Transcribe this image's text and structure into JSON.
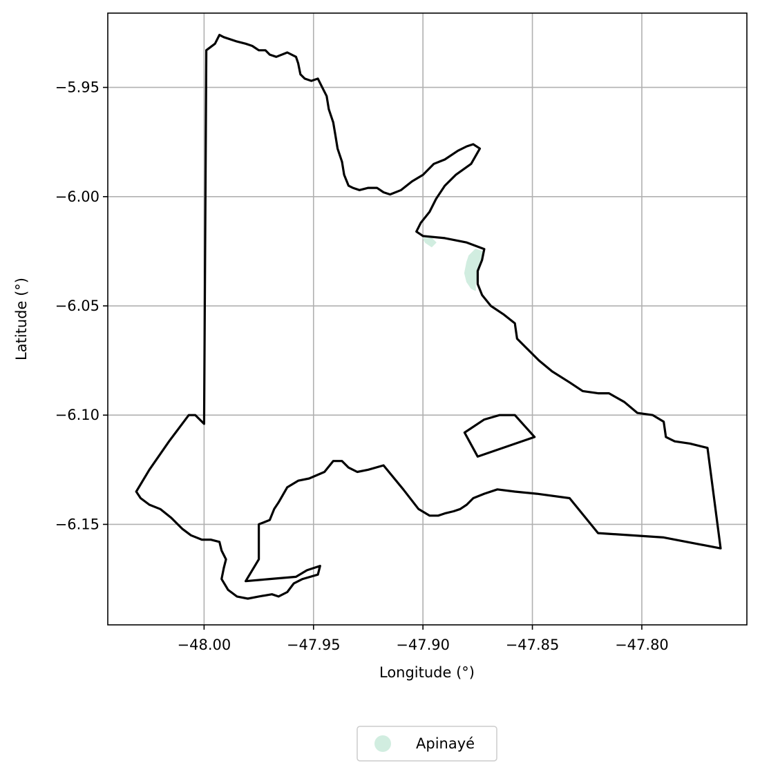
{
  "chart_data": {
    "type": "map",
    "xlabel": "Longitude (°)",
    "ylabel": "Latitude (°)",
    "xlim": [
      -48.044,
      -47.752
    ],
    "ylim": [
      -6.196,
      -5.916
    ],
    "grid": true,
    "legend_placement": "bottom-center",
    "x_ticks": [
      {
        "value": -48.0,
        "label": "−48.00"
      },
      {
        "value": -47.95,
        "label": "−47.95"
      },
      {
        "value": -47.9,
        "label": "−47.90"
      },
      {
        "value": -47.85,
        "label": "−47.85"
      },
      {
        "value": -47.8,
        "label": "−47.80"
      }
    ],
    "y_ticks": [
      {
        "value": -5.95,
        "label": "−5.95"
      },
      {
        "value": -6.0,
        "label": "−6.00"
      },
      {
        "value": -6.05,
        "label": "−6.05"
      },
      {
        "value": -6.1,
        "label": "−6.10"
      },
      {
        "value": -6.15,
        "label": "−6.15"
      }
    ],
    "boundary_color": "#000000",
    "boundary_rings": [
      [
        [
          -47.999,
          -5.933
        ],
        [
          -47.995,
          -5.93
        ],
        [
          -47.993,
          -5.926
        ],
        [
          -47.991,
          -5.927
        ],
        [
          -47.985,
          -5.929
        ],
        [
          -47.981,
          -5.93
        ],
        [
          -47.978,
          -5.931
        ],
        [
          -47.975,
          -5.933
        ],
        [
          -47.972,
          -5.933
        ],
        [
          -47.97,
          -5.935
        ],
        [
          -47.967,
          -5.936
        ],
        [
          -47.962,
          -5.934
        ],
        [
          -47.958,
          -5.936
        ],
        [
          -47.957,
          -5.939
        ],
        [
          -47.956,
          -5.944
        ],
        [
          -47.954,
          -5.946
        ],
        [
          -47.951,
          -5.947
        ],
        [
          -47.948,
          -5.946
        ],
        [
          -47.946,
          -5.95
        ],
        [
          -47.944,
          -5.954
        ],
        [
          -47.943,
          -5.96
        ],
        [
          -47.941,
          -5.966
        ],
        [
          -47.94,
          -5.972
        ],
        [
          -47.939,
          -5.978
        ],
        [
          -47.937,
          -5.984
        ],
        [
          -47.936,
          -5.99
        ],
        [
          -47.934,
          -5.995
        ],
        [
          -47.932,
          -5.996
        ],
        [
          -47.929,
          -5.997
        ],
        [
          -47.925,
          -5.996
        ],
        [
          -47.921,
          -5.996
        ],
        [
          -47.918,
          -5.998
        ],
        [
          -47.915,
          -5.999
        ],
        [
          -47.91,
          -5.997
        ],
        [
          -47.905,
          -5.993
        ],
        [
          -47.9,
          -5.99
        ],
        [
          -47.895,
          -5.985
        ],
        [
          -47.89,
          -5.983
        ],
        [
          -47.884,
          -5.979
        ],
        [
          -47.88,
          -5.977
        ],
        [
          -47.877,
          -5.976
        ],
        [
          -47.874,
          -5.978
        ],
        [
          -47.878,
          -5.985
        ],
        [
          -47.885,
          -5.99
        ],
        [
          -47.89,
          -5.995
        ],
        [
          -47.894,
          -6.001
        ],
        [
          -47.897,
          -6.007
        ],
        [
          -47.901,
          -6.012
        ],
        [
          -47.903,
          -6.016
        ],
        [
          -47.9,
          -6.018
        ],
        [
          -47.89,
          -6.019
        ],
        [
          -47.88,
          -6.021
        ],
        [
          -47.872,
          -6.024
        ],
        [
          -47.873,
          -6.029
        ],
        [
          -47.875,
          -6.034
        ],
        [
          -47.875,
          -6.04
        ],
        [
          -47.873,
          -6.045
        ],
        [
          -47.869,
          -6.05
        ],
        [
          -47.863,
          -6.054
        ],
        [
          -47.858,
          -6.058
        ],
        [
          -47.857,
          -6.065
        ],
        [
          -47.852,
          -6.07
        ],
        [
          -47.847,
          -6.075
        ],
        [
          -47.841,
          -6.08
        ],
        [
          -47.833,
          -6.085
        ],
        [
          -47.827,
          -6.089
        ],
        [
          -47.82,
          -6.09
        ],
        [
          -47.815,
          -6.09
        ],
        [
          -47.808,
          -6.094
        ],
        [
          -47.802,
          -6.099
        ],
        [
          -47.795,
          -6.1
        ],
        [
          -47.79,
          -6.103
        ],
        [
          -47.789,
          -6.11
        ],
        [
          -47.785,
          -6.112
        ],
        [
          -47.778,
          -6.113
        ],
        [
          -47.77,
          -6.115
        ],
        [
          -47.764,
          -6.161
        ],
        [
          -47.79,
          -6.156
        ],
        [
          -47.82,
          -6.154
        ],
        [
          -47.833,
          -6.138
        ],
        [
          -47.848,
          -6.136
        ],
        [
          -47.858,
          -6.135
        ],
        [
          -47.866,
          -6.134
        ],
        [
          -47.872,
          -6.136
        ],
        [
          -47.877,
          -6.138
        ],
        [
          -47.88,
          -6.141
        ],
        [
          -47.883,
          -6.143
        ],
        [
          -47.886,
          -6.144
        ],
        [
          -47.89,
          -6.145
        ],
        [
          -47.893,
          -6.146
        ],
        [
          -47.897,
          -6.146
        ],
        [
          -47.902,
          -6.143
        ],
        [
          -47.909,
          -6.134
        ],
        [
          -47.918,
          -6.123
        ],
        [
          -47.925,
          -6.125
        ],
        [
          -47.93,
          -6.126
        ],
        [
          -47.934,
          -6.124
        ],
        [
          -47.937,
          -6.121
        ],
        [
          -47.941,
          -6.121
        ],
        [
          -47.945,
          -6.126
        ],
        [
          -47.952,
          -6.129
        ],
        [
          -47.957,
          -6.13
        ],
        [
          -47.962,
          -6.133
        ],
        [
          -47.966,
          -6.14
        ],
        [
          -47.968,
          -6.143
        ],
        [
          -47.97,
          -6.148
        ],
        [
          -47.975,
          -6.15
        ],
        [
          -47.975,
          -6.166
        ],
        [
          -47.981,
          -6.176
        ],
        [
          -47.97,
          -6.175
        ],
        [
          -47.958,
          -6.174
        ],
        [
          -47.953,
          -6.171
        ],
        [
          -47.947,
          -6.169
        ],
        [
          -47.948,
          -6.173
        ],
        [
          -47.955,
          -6.175
        ],
        [
          -47.959,
          -6.177
        ],
        [
          -47.962,
          -6.181
        ],
        [
          -47.966,
          -6.183
        ],
        [
          -47.969,
          -6.182
        ],
        [
          -47.975,
          -6.183
        ],
        [
          -47.98,
          -6.184
        ],
        [
          -47.985,
          -6.183
        ],
        [
          -47.989,
          -6.18
        ],
        [
          -47.992,
          -6.175
        ],
        [
          -47.991,
          -6.17
        ],
        [
          -47.99,
          -6.166
        ],
        [
          -47.992,
          -6.162
        ],
        [
          -47.993,
          -6.158
        ],
        [
          -47.997,
          -6.157
        ],
        [
          -48.001,
          -6.157
        ],
        [
          -48.006,
          -6.155
        ],
        [
          -48.01,
          -6.152
        ],
        [
          -48.015,
          -6.147
        ],
        [
          -48.02,
          -6.143
        ],
        [
          -48.025,
          -6.141
        ],
        [
          -48.029,
          -6.138
        ],
        [
          -48.031,
          -6.135
        ],
        [
          -48.025,
          -6.125
        ],
        [
          -48.016,
          -6.112
        ],
        [
          -48.007,
          -6.1
        ],
        [
          -48.004,
          -6.1
        ],
        [
          -48.0,
          -6.104
        ],
        [
          -47.999,
          -5.933
        ]
      ],
      [
        [
          -47.881,
          -6.108
        ],
        [
          -47.872,
          -6.102
        ],
        [
          -47.865,
          -6.1
        ],
        [
          -47.858,
          -6.1
        ],
        [
          -47.849,
          -6.11
        ],
        [
          -47.875,
          -6.119
        ],
        [
          -47.881,
          -6.108
        ]
      ]
    ],
    "series": [
      {
        "name": "Apinayé",
        "color": "#d1ede0",
        "polygons": [
          [
            [
              -47.876,
              -6.024
            ],
            [
              -47.873,
              -6.025
            ],
            [
              -47.873,
              -6.028
            ],
            [
              -47.874,
              -6.032
            ],
            [
              -47.875,
              -6.036
            ],
            [
              -47.876,
              -6.04
            ],
            [
              -47.876,
              -6.043
            ],
            [
              -47.878,
              -6.042
            ],
            [
              -47.88,
              -6.039
            ],
            [
              -47.881,
              -6.035
            ],
            [
              -47.88,
              -6.03
            ],
            [
              -47.879,
              -6.027
            ],
            [
              -47.876,
              -6.024
            ]
          ],
          [
            [
              -47.9,
              -6.019
            ],
            [
              -47.896,
              -6.019
            ],
            [
              -47.894,
              -6.021
            ],
            [
              -47.896,
              -6.023
            ],
            [
              -47.899,
              -6.021
            ],
            [
              -47.9,
              -6.019
            ]
          ]
        ]
      }
    ]
  }
}
